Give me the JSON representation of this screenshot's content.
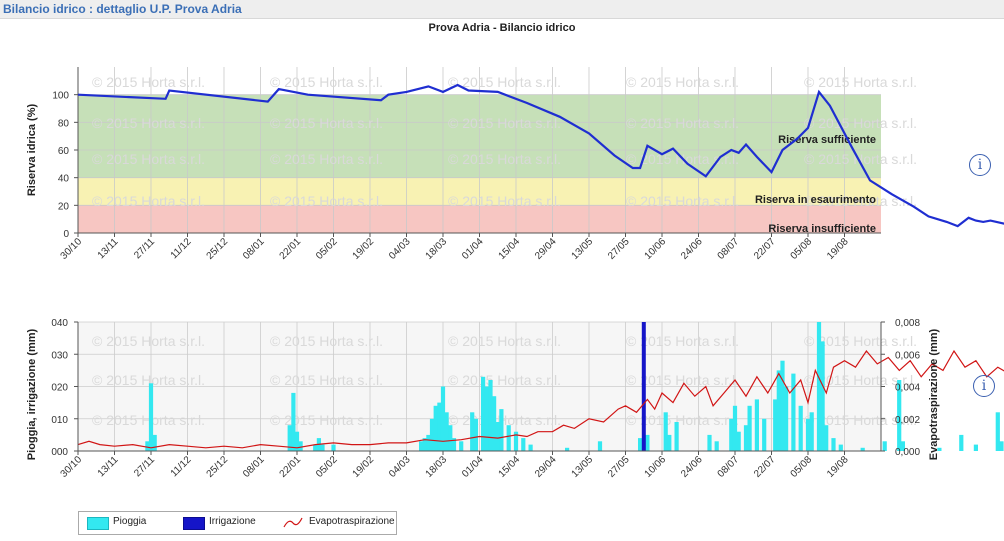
{
  "header": {
    "title": "Bilancio idrico : dettaglio U.P. Prova Adria"
  },
  "watermark": "© 2015 Horta s.r.l.",
  "info_icon": "i",
  "chart_data": [
    {
      "type": "line",
      "title": "Prova Adria - Bilancio idrico",
      "ylabel": "Riserva idrica (%)",
      "xlabel": "",
      "ylim": [
        0,
        120
      ],
      "yticks": [
        0,
        20,
        40,
        60,
        80,
        100
      ],
      "grid": true,
      "x_ticks": [
        "30/10",
        "13/11",
        "27/11",
        "11/12",
        "25/12",
        "08/01",
        "22/01",
        "05/02",
        "19/02",
        "04/03",
        "18/03",
        "01/04",
        "15/04",
        "29/04",
        "13/05",
        "27/05",
        "10/06",
        "24/06",
        "08/07",
        "22/07",
        "05/08",
        "19/08"
      ],
      "bands": [
        {
          "label": "Riserva sufficiente",
          "from": 40,
          "to": 100,
          "color": "#c6e0b8"
        },
        {
          "label": "Riserva in esaurimento",
          "from": 20,
          "to": 40,
          "color": "#f8f2b3"
        },
        {
          "label": "Riserva insufficiente",
          "from": 0,
          "to": 20,
          "color": "#f7c6c2"
        }
      ],
      "series": [
        {
          "color": "#1f2ed1",
          "points": [
            [
              0,
              100
            ],
            [
              2.4,
              97
            ],
            [
              2.5,
              103
            ],
            [
              5.2,
              95
            ],
            [
              5.5,
              104
            ],
            [
              6.3,
              100
            ],
            [
              8.3,
              96
            ],
            [
              8.5,
              100
            ],
            [
              9,
              102
            ],
            [
              9.6,
              106
            ],
            [
              10,
              102
            ],
            [
              10.4,
              107
            ],
            [
              10.7,
              103
            ],
            [
              11.5,
              102
            ],
            [
              12.3,
              94
            ],
            [
              13.2,
              84
            ],
            [
              14,
              72
            ],
            [
              14.7,
              56
            ],
            [
              15.2,
              47
            ],
            [
              15.4,
              47
            ],
            [
              15.6,
              63
            ],
            [
              16,
              57
            ],
            [
              16.3,
              61
            ],
            [
              16.7,
              50
            ],
            [
              17.2,
              41
            ],
            [
              17.6,
              55
            ],
            [
              17.9,
              60
            ],
            [
              18.1,
              58
            ],
            [
              18.3,
              64
            ],
            [
              18.6,
              55
            ],
            [
              19,
              44
            ],
            [
              19.3,
              60
            ],
            [
              19.7,
              68
            ],
            [
              20,
              76
            ],
            [
              20.3,
              102
            ],
            [
              20.6,
              92
            ],
            [
              21.2,
              62
            ],
            [
              21.7,
              38
            ],
            [
              22.3,
              28
            ],
            [
              22.9,
              19
            ],
            [
              23.3,
              12
            ],
            [
              23.8,
              8
            ],
            [
              24.1,
              5
            ],
            [
              24.4,
              11
            ],
            [
              24.6,
              9
            ],
            [
              24.8,
              8
            ],
            [
              25,
              9
            ],
            [
              25.5,
              6
            ],
            [
              26.5,
              5
            ],
            [
              27,
              4
            ],
            [
              27.8,
              3
            ]
          ]
        }
      ]
    },
    {
      "type": "bar",
      "ylabel": "Pioggia, irrigazione (mm)",
      "y2label": "Evapotraspirazione (mm)",
      "xlabel": "",
      "ylim": [
        0,
        40
      ],
      "y2lim": [
        0,
        0.008
      ],
      "yticks": [
        "000",
        "010",
        "020",
        "030",
        "040"
      ],
      "y2ticks": [
        "0,000",
        "0,002",
        "0,004",
        "0,006",
        "0,008"
      ],
      "grid": true,
      "x_ticks": [
        "30/10",
        "13/11",
        "27/11",
        "11/12",
        "25/12",
        "08/01",
        "22/01",
        "05/02",
        "19/02",
        "04/03",
        "18/03",
        "01/04",
        "15/04",
        "29/04",
        "13/05",
        "27/05",
        "10/06",
        "24/06",
        "08/07",
        "22/07",
        "05/08",
        "19/08"
      ],
      "legend": {
        "placement": "bottom-left",
        "entries": [
          "Pioggia",
          "Irrigazione",
          "Evapotraspirazione"
        ]
      },
      "series": [
        {
          "name": "Pioggia",
          "color": "#33e8f0",
          "points": [
            [
              1.9,
              3
            ],
            [
              2,
              21
            ],
            [
              2.1,
              5
            ],
            [
              5.8,
              8
            ],
            [
              5.9,
              18
            ],
            [
              6,
              6
            ],
            [
              6.1,
              3
            ],
            [
              6.5,
              2
            ],
            [
              6.6,
              4
            ],
            [
              6.7,
              2
            ],
            [
              7,
              2
            ],
            [
              9.4,
              3
            ],
            [
              9.5,
              4
            ],
            [
              9.6,
              5
            ],
            [
              9.7,
              10
            ],
            [
              9.8,
              14
            ],
            [
              9.9,
              15
            ],
            [
              10,
              20
            ],
            [
              10.1,
              12
            ],
            [
              10.2,
              8
            ],
            [
              10.3,
              4
            ],
            [
              10.5,
              3
            ],
            [
              10.8,
              12
            ],
            [
              10.9,
              10
            ],
            [
              11.1,
              23
            ],
            [
              11.2,
              20
            ],
            [
              11.3,
              22
            ],
            [
              11.4,
              17
            ],
            [
              11.5,
              9
            ],
            [
              11.6,
              13
            ],
            [
              11.8,
              8
            ],
            [
              12,
              6
            ],
            [
              12.2,
              4
            ],
            [
              12.4,
              2
            ],
            [
              13.4,
              1
            ],
            [
              14.3,
              3
            ],
            [
              15.4,
              4
            ],
            [
              15.6,
              5
            ],
            [
              16.1,
              12
            ],
            [
              16.2,
              5
            ],
            [
              16.4,
              9
            ],
            [
              17.3,
              5
            ],
            [
              17.5,
              3
            ],
            [
              17.9,
              10
            ],
            [
              18,
              14
            ],
            [
              18.1,
              6
            ],
            [
              18.3,
              8
            ],
            [
              18.4,
              14
            ],
            [
              18.6,
              16
            ],
            [
              18.8,
              10
            ],
            [
              19.1,
              16
            ],
            [
              19.2,
              25
            ],
            [
              19.3,
              28
            ],
            [
              19.4,
              20
            ],
            [
              19.6,
              24
            ],
            [
              19.8,
              14
            ],
            [
              20,
              10
            ],
            [
              20.1,
              12
            ],
            [
              20.3,
              40
            ],
            [
              20.4,
              34
            ],
            [
              20.5,
              8
            ],
            [
              20.7,
              4
            ],
            [
              20.9,
              2
            ],
            [
              21.5,
              1
            ],
            [
              22.1,
              3
            ],
            [
              22.5,
              22
            ],
            [
              22.6,
              3
            ],
            [
              23.6,
              1
            ],
            [
              24.2,
              5
            ],
            [
              24.6,
              2
            ],
            [
              25.2,
              12
            ],
            [
              25.3,
              3
            ],
            [
              25.7,
              4
            ],
            [
              26,
              6
            ],
            [
              26.8,
              3
            ],
            [
              27,
              3
            ],
            [
              27.3,
              5
            ]
          ]
        },
        {
          "name": "Irrigazione",
          "color": "#1515c8",
          "points": [
            [
              15.5,
              40
            ]
          ]
        },
        {
          "name": "Evapotraspirazione",
          "color": "#d11515",
          "points": [
            [
              0,
              0.0004
            ],
            [
              0.3,
              0.0006
            ],
            [
              0.6,
              0.0004
            ],
            [
              1,
              0.0003
            ],
            [
              1.5,
              0.0004
            ],
            [
              2,
              0.0002
            ],
            [
              2.5,
              0.0004
            ],
            [
              3,
              0.0003
            ],
            [
              3.5,
              0.0002
            ],
            [
              4,
              0.0003
            ],
            [
              4.5,
              0.0002
            ],
            [
              5,
              0.0004
            ],
            [
              5.5,
              0.0003
            ],
            [
              6,
              0.0002
            ],
            [
              6.5,
              0.0004
            ],
            [
              7,
              0.0005
            ],
            [
              7.5,
              0.0004
            ],
            [
              8,
              0.0004
            ],
            [
              8.5,
              0.0005
            ],
            [
              9,
              0.0005
            ],
            [
              9.5,
              0.0007
            ],
            [
              10,
              0.0006
            ],
            [
              10.5,
              0.0007
            ],
            [
              11,
              0.0009
            ],
            [
              11.5,
              0.0008
            ],
            [
              12,
              0.001
            ],
            [
              12.3,
              0.0009
            ],
            [
              12.6,
              0.0012
            ],
            [
              13,
              0.0012
            ],
            [
              13.3,
              0.0016
            ],
            [
              13.6,
              0.0014
            ],
            [
              14,
              0.002
            ],
            [
              14.4,
              0.0018
            ],
            [
              14.8,
              0.0026
            ],
            [
              15,
              0.0028
            ],
            [
              15.3,
              0.0024
            ],
            [
              15.6,
              0.0032
            ],
            [
              15.8,
              0.0026
            ],
            [
              16,
              0.0036
            ],
            [
              16.3,
              0.003
            ],
            [
              16.6,
              0.0042
            ],
            [
              16.9,
              0.0034
            ],
            [
              17.2,
              0.004
            ],
            [
              17.4,
              0.0028
            ],
            [
              17.7,
              0.0036
            ],
            [
              18,
              0.0044
            ],
            [
              18.3,
              0.0034
            ],
            [
              18.6,
              0.0046
            ],
            [
              18.9,
              0.0036
            ],
            [
              19.2,
              0.0048
            ],
            [
              19.5,
              0.0036
            ],
            [
              19.8,
              0.0044
            ],
            [
              20,
              0.003
            ],
            [
              20.2,
              0.005
            ],
            [
              20.5,
              0.0036
            ],
            [
              20.7,
              0.0052
            ],
            [
              21,
              0.0056
            ],
            [
              21.3,
              0.0052
            ],
            [
              21.6,
              0.0062
            ],
            [
              21.9,
              0.0054
            ],
            [
              22.2,
              0.0058
            ],
            [
              22.5,
              0.005
            ],
            [
              22.8,
              0.0056
            ],
            [
              23.1,
              0.0046
            ],
            [
              23.4,
              0.0054
            ],
            [
              23.7,
              0.005
            ],
            [
              24,
              0.0062
            ],
            [
              24.3,
              0.0052
            ],
            [
              24.6,
              0.0056
            ],
            [
              24.9,
              0.0046
            ],
            [
              25.2,
              0.0052
            ],
            [
              25.5,
              0.0048
            ],
            [
              25.8,
              0.003
            ],
            [
              26.1,
              0.0046
            ],
            [
              26.4,
              0.0054
            ],
            [
              26.7,
              0.0044
            ],
            [
              27,
              0.0048
            ],
            [
              27.3,
              0.005
            ],
            [
              27.6,
              0.004
            ],
            [
              27.8,
              0.0036
            ]
          ]
        }
      ]
    }
  ]
}
